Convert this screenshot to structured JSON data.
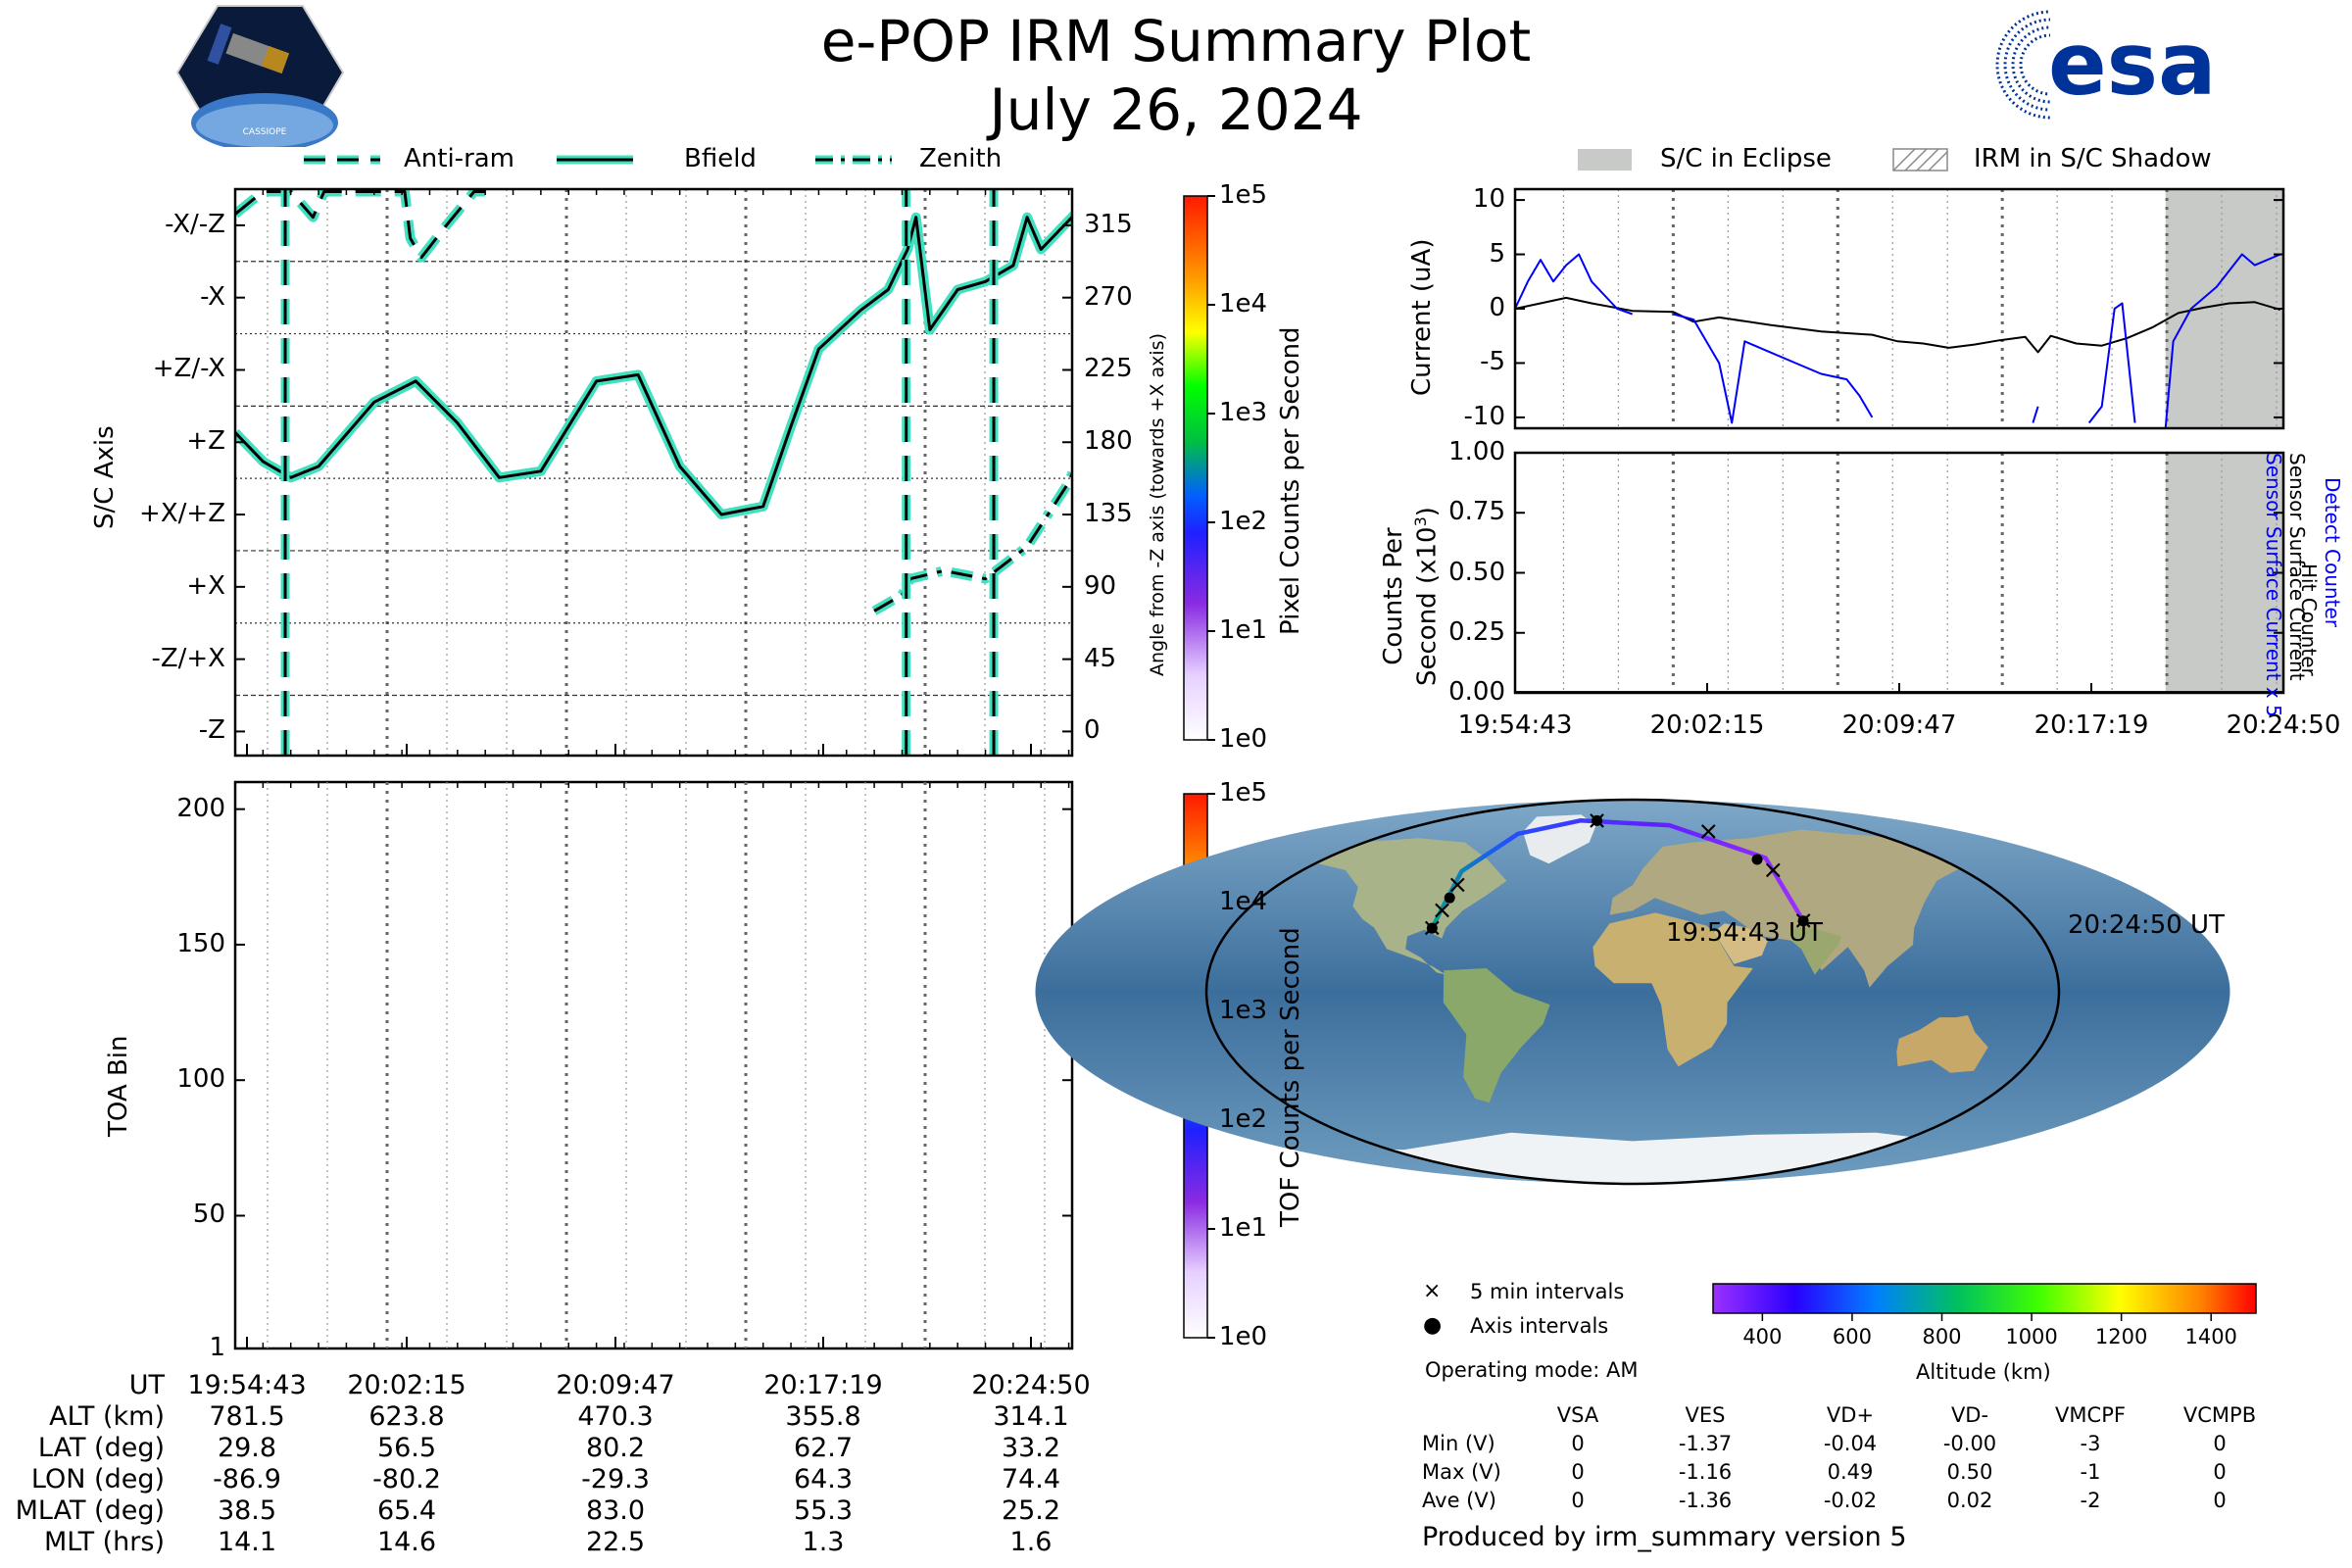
{
  "header": {
    "title": "e-POP IRM Summary Plot",
    "date": "July 26, 2024"
  },
  "logos": {
    "left_icon": "cassiope-mission-badge-icon",
    "left_text": "CASSIOPE",
    "right_icon": "esa-logo-icon",
    "right_text": "esa",
    "esa_color": "#003399"
  },
  "colors": {
    "trace_halo": "#40e0c0",
    "trace_core": "#000000",
    "current_sensor": "#0000ff",
    "current_surface": "#000000",
    "eclipse_fill": "#c8cac8"
  },
  "chart_data": [
    {
      "id": "sc-axis-panel",
      "type": "line",
      "ylabel": "S/C Axis",
      "ylabel_right": "Angle from -Z axis (towards +X axis)",
      "ylim": [
        -15,
        337.5
      ],
      "y_tick_values": [
        0,
        45,
        90,
        135,
        180,
        225,
        270,
        315
      ],
      "y_tick_labels_left": [
        "-Z",
        "-Z/+X",
        "+X",
        "+X/+Z",
        "+Z",
        "+Z/-X",
        "-X",
        "-X/-Z"
      ],
      "y_tick_labels_right": [
        "0",
        "45",
        "90",
        "135",
        "180",
        "225",
        "270",
        "315"
      ],
      "legend": [
        "Anti-ram",
        "Bfield",
        "Zenith"
      ],
      "legend_location": "top",
      "x_start": "19:54:43",
      "x_end": "20:24:50",
      "series": [
        {
          "name": "Anti-ram",
          "style": "dashed",
          "points": [
            [
              0,
              322
            ],
            [
              1,
              336
            ],
            [
              2,
              336
            ],
            [
              2.8,
              320
            ],
            [
              3.2,
              336
            ],
            [
              6.1,
              336
            ],
            [
              6.3,
              307
            ],
            [
              6.7,
              295
            ],
            [
              7.6,
              315
            ],
            [
              8.6,
              336
            ],
            [
              9,
              336
            ]
          ]
        },
        {
          "name": "Bfield",
          "style": "solid",
          "points": [
            [
              0,
              186
            ],
            [
              1,
              168
            ],
            [
              2,
              158
            ],
            [
              3,
              165
            ],
            [
              5,
              205
            ],
            [
              6.5,
              218
            ],
            [
              8,
              192
            ],
            [
              9.5,
              158
            ],
            [
              11,
              162
            ],
            [
              13,
              218
            ],
            [
              14.5,
              222
            ],
            [
              16,
              165
            ],
            [
              17.5,
              135
            ],
            [
              19,
              140
            ],
            [
              20,
              190
            ],
            [
              21,
              238
            ],
            [
              22.5,
              262
            ],
            [
              23.5,
              275
            ],
            [
              24.2,
              300
            ],
            [
              24.5,
              320
            ],
            [
              25,
              250
            ],
            [
              26,
              275
            ],
            [
              27,
              280
            ],
            [
              28,
              290
            ],
            [
              28.5,
              320
            ],
            [
              29,
              300
            ],
            [
              30,
              318
            ],
            [
              31,
              336
            ]
          ]
        },
        {
          "name": "Zenith",
          "style": "dashdot",
          "points": [
            [
              23,
              75
            ],
            [
              24,
              85
            ],
            [
              24.3,
              95
            ],
            [
              25.5,
              100
            ],
            [
              27,
              95
            ],
            [
              28.5,
              115
            ],
            [
              30,
              155
            ],
            [
              31,
              200
            ],
            [
              32,
              235
            ],
            [
              33,
              255
            ],
            [
              34,
              258
            ],
            [
              35,
              240
            ],
            [
              36,
              185
            ],
            [
              37,
              130
            ],
            [
              38,
              120
            ],
            [
              39,
              145
            ],
            [
              39.5,
              170
            ]
          ]
        }
      ]
    },
    {
      "id": "toa-panel",
      "type": "heatmap",
      "ylabel": "TOA Bin",
      "ylim": [
        1,
        210
      ],
      "y_ticks": [
        1,
        50,
        100,
        150,
        200
      ],
      "colorbar_label": "TOF Counts per Second",
      "colorbar_ticks": [
        "1e0",
        "1e1",
        "1e2",
        "1e3",
        "1e4",
        "1e5"
      ],
      "values": []
    },
    {
      "id": "current-panel",
      "type": "line",
      "ylabel": "Current (uA)",
      "ylabel_right_1": "Sensor Surface Current x 5",
      "ylabel_right_2": "Sensor Surface Current",
      "ylim": [
        -11,
        11
      ],
      "y_ticks": [
        -10,
        -5,
        0,
        5,
        10
      ],
      "legend": [
        "S/C in Eclipse",
        "IRM in S/C Shadow"
      ],
      "legend_location": "top",
      "eclipse_range_minutes": [
        25.5,
        30.12
      ],
      "x_start": "19:54:43",
      "x_end": "20:24:50",
      "series": [
        {
          "name": "Sensor Surface Current",
          "color": "#000000",
          "points": [
            [
              0,
              0
            ],
            [
              1,
              0.5
            ],
            [
              2,
              1
            ],
            [
              3,
              0.5
            ],
            [
              4.6,
              -0.2
            ],
            [
              6.2,
              -0.3
            ],
            [
              7,
              -1.2
            ],
            [
              8,
              -0.8
            ],
            [
              10,
              -1.5
            ],
            [
              12,
              -2.1
            ],
            [
              14,
              -2.4
            ],
            [
              15,
              -3
            ],
            [
              16,
              -3.2
            ],
            [
              17,
              -3.6
            ],
            [
              18,
              -3.3
            ],
            [
              19,
              -2.9
            ],
            [
              20,
              -2.6
            ],
            [
              20.5,
              -4
            ],
            [
              21,
              -2.5
            ],
            [
              22,
              -3.2
            ],
            [
              23,
              -3.4
            ],
            [
              24,
              -2.7
            ],
            [
              25,
              -1.7
            ],
            [
              26,
              -0.4
            ],
            [
              27,
              0.1
            ],
            [
              28,
              0.5
            ],
            [
              29,
              0.6
            ],
            [
              30,
              -0.1
            ]
          ]
        },
        {
          "name": "Sensor Surface Current x 5",
          "color": "#0000ff",
          "points": [
            [
              0,
              0
            ],
            [
              0.5,
              2.5
            ],
            [
              1,
              4.5
            ],
            [
              1.5,
              2.5
            ],
            [
              2,
              4
            ],
            [
              2.5,
              5
            ],
            [
              3,
              2.5
            ],
            [
              4,
              0
            ],
            [
              4.6,
              -0.5
            ],
            [
              null,
              null
            ],
            [
              6.2,
              -0.5
            ],
            [
              7,
              -1
            ],
            [
              8,
              -5
            ],
            [
              8.5,
              -10.5
            ],
            [
              9,
              -3
            ],
            [
              10,
              -4
            ],
            [
              11,
              -5
            ],
            [
              12,
              -6
            ],
            [
              13,
              -6.5
            ],
            [
              13.5,
              -8
            ],
            [
              14,
              -10
            ],
            [
              null,
              null
            ],
            [
              20.3,
              -10.5
            ],
            [
              20.5,
              -9
            ],
            [
              null,
              null
            ],
            [
              22.5,
              -10.5
            ],
            [
              23,
              -9
            ],
            [
              23.5,
              0
            ],
            [
              23.8,
              0.5
            ],
            [
              24.3,
              -10.5
            ],
            [
              null,
              null
            ],
            [
              25.5,
              -11
            ],
            [
              25.8,
              -3
            ],
            [
              26.5,
              0
            ],
            [
              27.5,
              2
            ],
            [
              28.5,
              5
            ],
            [
              29,
              4
            ],
            [
              30,
              5
            ]
          ]
        }
      ]
    },
    {
      "id": "counts-panel",
      "type": "line",
      "ylabel": "Counts Per Second (x10³)",
      "ylabel_right_1": "Detect Counter",
      "ylabel_right_2": "Hit Counter",
      "ylim": [
        0,
        1
      ],
      "y_ticks": [
        "0.00",
        "0.25",
        "0.50",
        "0.75",
        "1.00"
      ],
      "x_tick_labels": [
        "19:54:43",
        "20:02:15",
        "20:09:47",
        "20:17:19",
        "20:24:50"
      ],
      "series": [
        {
          "name": "Detect Counter",
          "color": "#0000ff",
          "values": [
            0,
            0
          ]
        }
      ]
    },
    {
      "id": "ground-track-map",
      "type": "scatter",
      "start_label": "19:54:43 UT",
      "end_label": "20:24:50 UT",
      "track_lonlat": [
        [
          -86.9,
          29.8
        ],
        [
          -84,
          40
        ],
        [
          -80.2,
          56.5
        ],
        [
          -60,
          74
        ],
        [
          -29.3,
          80.2
        ],
        [
          20,
          78
        ],
        [
          64.3,
          62.7
        ],
        [
          74.4,
          33.2
        ]
      ],
      "legend_5min": "5 min intervals",
      "legend_axis": "Axis intervals",
      "colorbar_label": "Altitude (km)",
      "colorbar_ticks": [
        "400",
        "600",
        "800",
        "1000",
        "1200",
        "1400"
      ],
      "colorbar_range": [
        290,
        1500
      ]
    }
  ],
  "ephemeris": {
    "rows": [
      {
        "label": "UT",
        "values": [
          "19:54:43",
          "20:02:15",
          "20:09:47",
          "20:17:19",
          "20:24:50"
        ]
      },
      {
        "label": "ALT (km)",
        "values": [
          "781.5",
          "623.8",
          "470.3",
          "355.8",
          "314.1"
        ]
      },
      {
        "label": "LAT (deg)",
        "values": [
          "29.8",
          "56.5",
          "80.2",
          "62.7",
          "33.2"
        ]
      },
      {
        "label": "LON (deg)",
        "values": [
          "-86.9",
          "-80.2",
          "-29.3",
          "64.3",
          "74.4"
        ]
      },
      {
        "label": "MLAT (deg)",
        "values": [
          "38.5",
          "65.4",
          "83.0",
          "55.3",
          "25.2"
        ]
      },
      {
        "label": "MLT (hrs)",
        "values": [
          "14.1",
          "14.6",
          "22.5",
          "1.3",
          "1.6"
        ]
      }
    ]
  },
  "colorbar_top": {
    "label": "Pixel Counts per Second",
    "ticks": [
      "1e0",
      "1e1",
      "1e2",
      "1e3",
      "1e4",
      "1e5"
    ]
  },
  "operating_mode": "Operating mode: AM",
  "voltage_table": {
    "columns": [
      "VSA",
      "VES",
      "VD+",
      "VD-",
      "VMCPF",
      "VCMPB"
    ],
    "rows": [
      {
        "label": "Min (V)",
        "values": [
          "0",
          "-1.37",
          "-0.04",
          "-0.00",
          "-3",
          "0"
        ]
      },
      {
        "label": "Max (V)",
        "values": [
          "0",
          "-1.16",
          "0.49",
          "0.50",
          "-1",
          "0"
        ]
      },
      {
        "label": "Ave (V)",
        "values": [
          "0",
          "-1.36",
          "-0.02",
          "0.02",
          "-2",
          "0"
        ]
      }
    ]
  },
  "footer": "Produced by irm_summary version 5"
}
